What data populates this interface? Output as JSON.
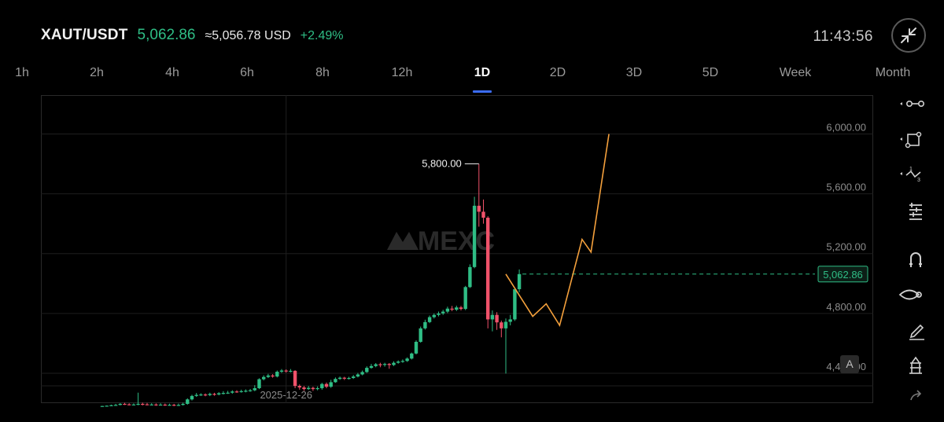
{
  "header": {
    "pair": "XAUT/USDT",
    "price": "5,062.86",
    "usd_price": "≈5,056.78 USD",
    "change": "+2.49%",
    "time": "11:43:56",
    "collapse_icon": "collapse-arrows-icon"
  },
  "timeframes": [
    "1h",
    "2h",
    "4h",
    "6h",
    "8h",
    "12h",
    "1D",
    "2D",
    "3D",
    "5D",
    "Week",
    "Month"
  ],
  "active_timeframe": "1D",
  "watermark": "MEXC",
  "toolbar": {
    "icons": [
      "horizontal-line-tool-icon",
      "shape-tool-icon",
      "fibonacci-tool-icon",
      "indicator-settings-icon",
      "magnet-icon",
      "eye-icon",
      "pencil-icon",
      "trading-tool-icon",
      "share-icon"
    ]
  },
  "auto_scale_label": "A",
  "colors": {
    "up": "#2fbd85",
    "down": "#f0526a",
    "projection": "#f4a03c",
    "accent": "#3b6cf6"
  },
  "chart_data": {
    "type": "candlestick",
    "y_tick_labels": [
      "6,000.00",
      "5,600.00",
      "5,200.00",
      "4,800.00",
      "4,400.00"
    ],
    "x_tick_labels": [
      "2025-12-26"
    ],
    "ylim": [
      4200,
      6260
    ],
    "max_label": "5,800.00",
    "current_price_label": "5,062.86",
    "current_price": 5062.86,
    "grid": true,
    "candles": [
      [
        4181,
        4181,
        4182,
        4180
      ],
      [
        4182,
        4183,
        4184,
        4180
      ],
      [
        4183,
        4186,
        4190,
        4181
      ],
      [
        4186,
        4188,
        4195,
        4182
      ],
      [
        4188,
        4195,
        4200,
        4185
      ],
      [
        4195,
        4192,
        4202,
        4188
      ],
      [
        4192,
        4190,
        4199,
        4186
      ],
      [
        4190,
        4191,
        4198,
        4186
      ],
      [
        4191,
        4195,
        4270,
        4186
      ],
      [
        4195,
        4192,
        4203,
        4185
      ],
      [
        4192,
        4190,
        4201,
        4186
      ],
      [
        4190,
        4191,
        4199,
        4185
      ],
      [
        4191,
        4188,
        4198,
        4182
      ],
      [
        4188,
        4190,
        4199,
        4184
      ],
      [
        4190,
        4187,
        4197,
        4182
      ],
      [
        4187,
        4189,
        4196,
        4183
      ],
      [
        4189,
        4186,
        4195,
        4180
      ],
      [
        4186,
        4188,
        4197,
        4181
      ],
      [
        4188,
        4195,
        4203,
        4184
      ],
      [
        4195,
        4225,
        4232,
        4190
      ],
      [
        4225,
        4248,
        4256,
        4218
      ],
      [
        4248,
        4255,
        4268,
        4242
      ],
      [
        4255,
        4258,
        4266,
        4248
      ],
      [
        4258,
        4254,
        4265,
        4246
      ],
      [
        4254,
        4262,
        4270,
        4247
      ],
      [
        4262,
        4258,
        4269,
        4250
      ],
      [
        4258,
        4266,
        4274,
        4252
      ],
      [
        4266,
        4268,
        4280,
        4258
      ],
      [
        4268,
        4270,
        4282,
        4262
      ],
      [
        4270,
        4278,
        4286,
        4263
      ],
      [
        4278,
        4276,
        4286,
        4269
      ],
      [
        4276,
        4280,
        4290,
        4270
      ],
      [
        4280,
        4283,
        4292,
        4272
      ],
      [
        4283,
        4286,
        4295,
        4276
      ],
      [
        4286,
        4300,
        4320,
        4280
      ],
      [
        4300,
        4360,
        4366,
        4294
      ],
      [
        4360,
        4375,
        4386,
        4352
      ],
      [
        4375,
        4385,
        4396,
        4368
      ],
      [
        4385,
        4378,
        4394,
        4370
      ],
      [
        4378,
        4410,
        4418,
        4372
      ],
      [
        4410,
        4418,
        4428,
        4402
      ],
      [
        4418,
        4412,
        4426,
        4404
      ],
      [
        4412,
        4416,
        4428,
        4406
      ],
      [
        4416,
        4315,
        4420,
        4300
      ],
      [
        4315,
        4305,
        4325,
        4290
      ],
      [
        4305,
        4294,
        4315,
        4282
      ],
      [
        4294,
        4302,
        4315,
        4288
      ],
      [
        4302,
        4294,
        4310,
        4282
      ],
      [
        4294,
        4300,
        4312,
        4286
      ],
      [
        4300,
        4328,
        4336,
        4290
      ],
      [
        4328,
        4310,
        4338,
        4300
      ],
      [
        4310,
        4340,
        4356,
        4302
      ],
      [
        4340,
        4362,
        4372,
        4336
      ],
      [
        4362,
        4370,
        4378,
        4356
      ],
      [
        4370,
        4365,
        4376,
        4355
      ],
      [
        4365,
        4368,
        4376,
        4358
      ],
      [
        4368,
        4378,
        4388,
        4362
      ],
      [
        4378,
        4392,
        4402,
        4372
      ],
      [
        4392,
        4408,
        4418,
        4386
      ],
      [
        4408,
        4436,
        4446,
        4402
      ],
      [
        4436,
        4448,
        4462,
        4430
      ],
      [
        4448,
        4460,
        4468,
        4440
      ],
      [
        4460,
        4456,
        4470,
        4440
      ],
      [
        4456,
        4462,
        4470,
        4444
      ],
      [
        4462,
        4455,
        4468,
        4430
      ],
      [
        4455,
        4470,
        4480,
        4448
      ],
      [
        4470,
        4478,
        4486,
        4464
      ],
      [
        4478,
        4482,
        4492,
        4470
      ],
      [
        4482,
        4498,
        4506,
        4476
      ],
      [
        4498,
        4532,
        4538,
        4492
      ],
      [
        4532,
        4610,
        4620,
        4526
      ],
      [
        4610,
        4700,
        4712,
        4604
      ],
      [
        4700,
        4742,
        4758,
        4692
      ],
      [
        4742,
        4775,
        4786,
        4735
      ],
      [
        4775,
        4790,
        4800,
        4766
      ],
      [
        4790,
        4800,
        4812,
        4780
      ],
      [
        4800,
        4812,
        4824,
        4790
      ],
      [
        4812,
        4832,
        4845,
        4802
      ],
      [
        4832,
        4825,
        4850,
        4815
      ],
      [
        4825,
        4840,
        4852,
        4816
      ],
      [
        4840,
        4830,
        4850,
        4820
      ],
      [
        4830,
        4976,
        4984,
        4822
      ],
      [
        4976,
        5110,
        5128,
        4970
      ],
      [
        5110,
        5520,
        5580,
        5102
      ],
      [
        5520,
        5480,
        5800,
        5380
      ],
      [
        5480,
        5440,
        5562,
        5400
      ],
      [
        5440,
        4760,
        5450,
        4700
      ],
      [
        4760,
        4790,
        4820,
        4680
      ],
      [
        4790,
        4740,
        4808,
        4690
      ],
      [
        4740,
        4700,
        4752,
        4640
      ],
      [
        4700,
        4744,
        4766,
        4398
      ],
      [
        4744,
        4760,
        4790,
        4720
      ],
      [
        4760,
        4962,
        4972,
        4750
      ],
      [
        4962,
        5062.86,
        5094,
        4942
      ]
    ],
    "projection_path": [
      [
        90,
        5062.86
      ],
      [
        96,
        4780
      ],
      [
        99,
        4864
      ],
      [
        102,
        4720
      ],
      [
        107,
        5295
      ],
      [
        109,
        5210
      ],
      [
        113,
        6000
      ]
    ]
  }
}
